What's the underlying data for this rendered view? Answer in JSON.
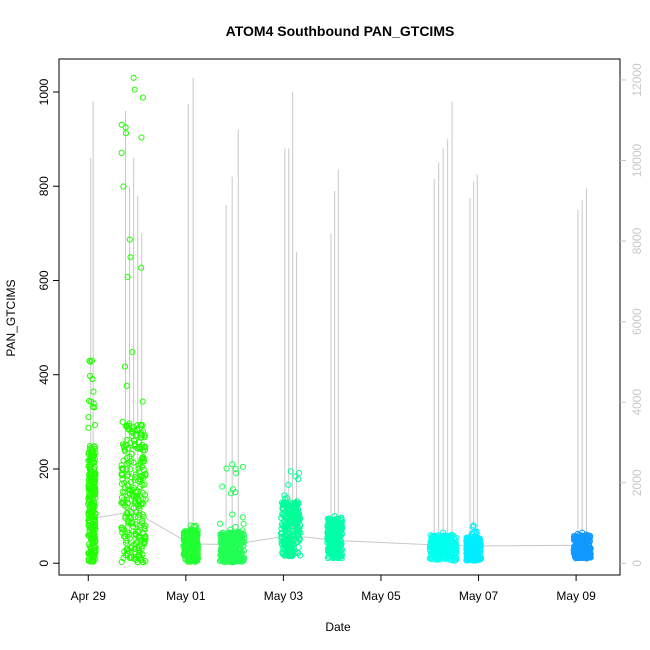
{
  "chart_data": {
    "type": "scatter",
    "title": "ATOM4 Southbound PAN_GTCIMS",
    "xlabel": "Date",
    "ylabel": "PAN_GTCIMS",
    "xlim": [
      -0.6,
      10.9
    ],
    "ylim": [
      -25,
      1070
    ],
    "x_ticks": [
      {
        "value": 0.0,
        "label": "Apr 29"
      },
      {
        "value": 2.0,
        "label": "May 01"
      },
      {
        "value": 4.0,
        "label": "May 03"
      },
      {
        "value": 6.0,
        "label": "May 05"
      },
      {
        "value": 8.0,
        "label": "May 07"
      },
      {
        "value": 10.0,
        "label": "May 09"
      }
    ],
    "y_ticks": [
      0,
      200,
      400,
      600,
      800,
      1000
    ],
    "y2_ticks": [
      0,
      2000,
      4000,
      6000,
      8000,
      10000,
      12000
    ],
    "y2lim": [
      -290,
      12520
    ],
    "clusters": [
      {
        "x_start": 0.0,
        "x_end": 0.15,
        "min": 2,
        "max": 430,
        "color": "#22ff00",
        "dense_max": 250,
        "spikes": [
          860,
          980
        ]
      },
      {
        "x_start": 0.68,
        "x_end": 1.18,
        "min": 2,
        "max": 1030,
        "color": "#22ff00",
        "dense_max": 300,
        "spikes": [
          960,
          800,
          860,
          780,
          700
        ]
      },
      {
        "x_start": 1.95,
        "x_end": 2.25,
        "min": 3,
        "max": 80,
        "color": "#22ff33",
        "dense_max": 70,
        "spikes": [
          975,
          1030
        ]
      },
      {
        "x_start": 2.7,
        "x_end": 3.2,
        "min": 2,
        "max": 210,
        "color": "#22ff55",
        "dense_max": 65,
        "spikes": [
          760,
          820,
          920
        ]
      },
      {
        "x_start": 3.95,
        "x_end": 4.35,
        "min": 15,
        "max": 195,
        "color": "#00ff99",
        "dense_max": 130,
        "spikes": [
          880,
          880,
          1000,
          660
        ]
      },
      {
        "x_start": 4.9,
        "x_end": 5.2,
        "min": 10,
        "max": 100,
        "color": "#00ffaa",
        "dense_max": 95,
        "spikes": [
          700,
          790,
          835
        ]
      },
      {
        "x_start": 7.0,
        "x_end": 7.55,
        "min": 5,
        "max": 65,
        "color": "#00ffee",
        "dense_max": 60,
        "spikes": [
          815,
          850,
          880,
          900,
          980
        ]
      },
      {
        "x_start": 7.75,
        "x_end": 8.05,
        "min": 5,
        "max": 80,
        "color": "#00eeff",
        "dense_max": 55,
        "spikes": [
          775,
          810,
          825
        ]
      },
      {
        "x_start": 9.95,
        "x_end": 10.3,
        "min": 10,
        "max": 65,
        "color": "#1199ff",
        "dense_max": 60,
        "spikes": [
          750,
          770,
          795
        ]
      }
    ]
  }
}
